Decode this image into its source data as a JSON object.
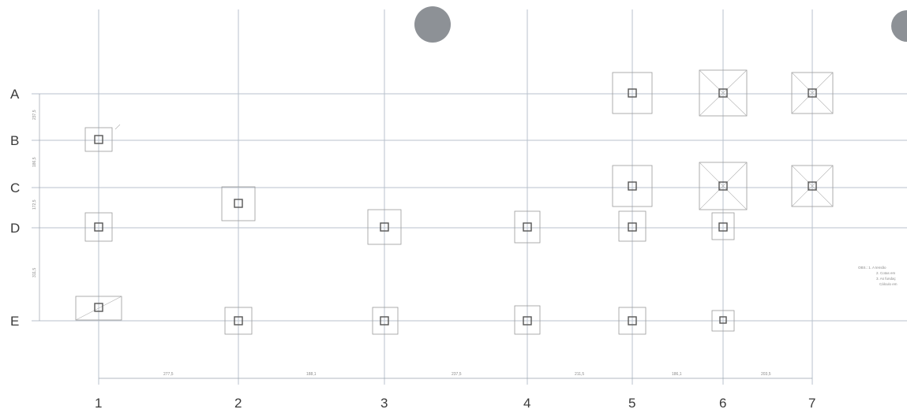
{
  "rows": [
    "A",
    "B",
    "C",
    "D",
    "E"
  ],
  "columns": [
    "1",
    "2",
    "3",
    "4",
    "5",
    "6",
    "7"
  ],
  "dimensions_bottom": [
    "277,5",
    "188,1",
    "237,5",
    "211,5",
    "186,1",
    "203,5"
  ],
  "dimensions_left": [
    "237,5",
    "186,5",
    "172,5",
    "311,5"
  ],
  "note": [
    "OBS.: 1. A tensão",
    "2. Cotas em",
    "3. As fundaç",
    "Cálculo em"
  ],
  "colors": {
    "grid": "#b9c2cc",
    "ink": "#3a3a3a",
    "marker": "#8d9196"
  }
}
